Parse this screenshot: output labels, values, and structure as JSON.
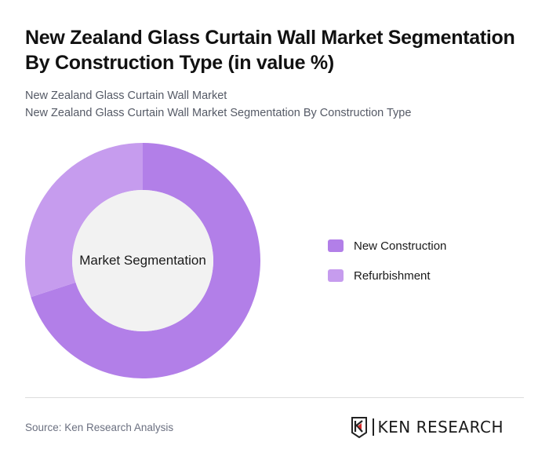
{
  "header": {
    "title": "New Zealand Glass Curtain Wall Market Segmentation By Construction Type (in value %)",
    "subtitle_1": "New Zealand Glass Curtain Wall Market",
    "subtitle_2": "New Zealand Glass Curtain Wall Market Segmentation By Construction Type"
  },
  "chart": {
    "center_label": "Market Segmentation"
  },
  "legend": {
    "items": [
      {
        "label": "New Construction",
        "color": "#b27fe8"
      },
      {
        "label": "Refurbishment",
        "color": "#c69cee"
      }
    ]
  },
  "footer": {
    "source": "Source: Ken Research Analysis",
    "logo_text": "KEN RESEARCH",
    "logo_accent": "#d62b2b"
  },
  "chart_data": {
    "type": "pie",
    "variant": "donut",
    "title": "New Zealand Glass Curtain Wall Market Segmentation By Construction Type (in value %)",
    "center_label": "Market Segmentation",
    "categories": [
      "New Construction",
      "Refurbishment"
    ],
    "values": [
      70,
      30
    ],
    "colors": [
      "#b27fe8",
      "#c69cee"
    ],
    "unit": "%",
    "legend_position": "right",
    "start_angle": "12 o'clock, clockwise"
  }
}
